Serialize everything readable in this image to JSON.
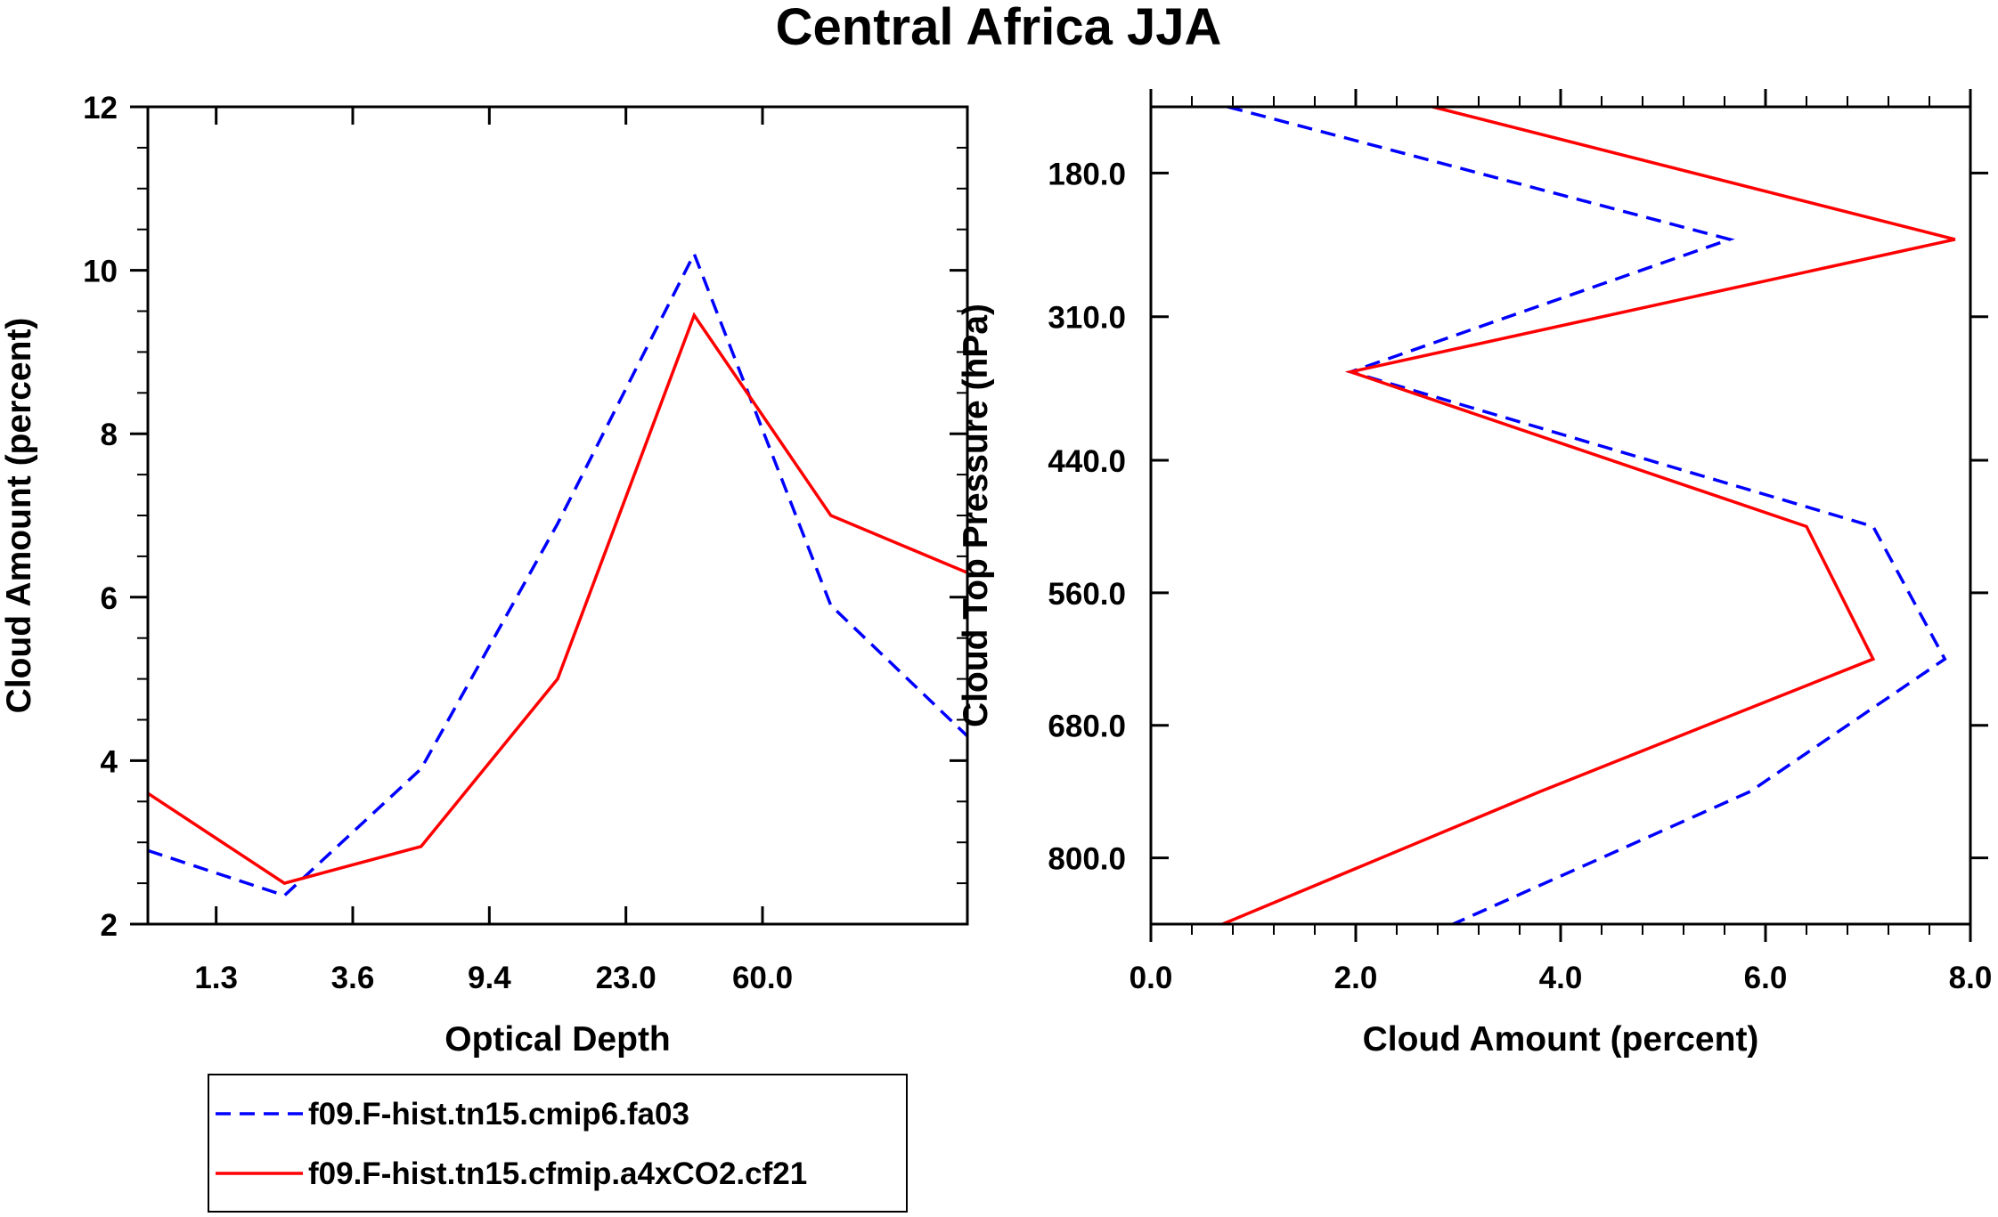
{
  "title": "Central Africa JJA",
  "chart_data": [
    {
      "type": "line",
      "xlabel": "Optical Depth",
      "ylabel": "Cloud Amount (percent)",
      "x_index": [
        0,
        1,
        2,
        3,
        4,
        5
      ],
      "xlim": [
        0.5,
        6.5
      ],
      "ylim": [
        2,
        12
      ],
      "x_tick_labels": [
        {
          "pos": 1,
          "label": "1.3"
        },
        {
          "pos": 2,
          "label": "3.6"
        },
        {
          "pos": 3,
          "label": "9.4"
        },
        {
          "pos": 4,
          "label": "23.0"
        },
        {
          "pos": 5,
          "label": "60.0"
        }
      ],
      "y_ticks": [
        2,
        4,
        6,
        8,
        10,
        12
      ],
      "y_tick_labels": [
        "2",
        "4",
        "6",
        "8",
        "10",
        "12"
      ],
      "series": [
        {
          "name": "f09.F-hist.tn15.cmip6.fa03",
          "color": "#0000ff",
          "dashed": true,
          "x": [
            0.5,
            1.5,
            2.5,
            3.5,
            4.5,
            5.5,
            6.5
          ],
          "values": [
            2.9,
            2.35,
            3.9,
            6.9,
            10.2,
            5.9,
            4.3
          ]
        },
        {
          "name": "f09.F-hist.tn15.cfmip.a4xCO2.cf21",
          "color": "#ff0000",
          "dashed": false,
          "x": [
            0.5,
            1.5,
            2.5,
            3.5,
            4.5,
            5.5,
            6.5
          ],
          "values": [
            3.6,
            2.5,
            2.95,
            5.0,
            9.45,
            7.0,
            6.3
          ]
        }
      ]
    },
    {
      "type": "line",
      "orientation": "vertical-profile",
      "xlabel": "Cloud Amount (percent)",
      "ylabel": "Cloud Top Pressure (hPa)",
      "xlim": [
        0,
        8
      ],
      "ylim": [
        120,
        860
      ],
      "y_inverted": true,
      "x_ticks": [
        0,
        2,
        4,
        6,
        8
      ],
      "x_tick_labels": [
        "0.0",
        "2.0",
        "4.0",
        "6.0",
        "8.0"
      ],
      "y_ticks": [
        180,
        310,
        440,
        560,
        680,
        800
      ],
      "y_tick_labels": [
        "180.0",
        "310.0",
        "440.0",
        "560.0",
        "680.0",
        "800.0"
      ],
      "series": [
        {
          "name": "f09.F-hist.tn15.cmip6.fa03",
          "color": "#0000ff",
          "dashed": true,
          "pressure": [
            120,
            240,
            360,
            500,
            620,
            740,
            860
          ],
          "values": [
            0.75,
            5.65,
            1.95,
            7.05,
            7.75,
            5.85,
            2.95
          ]
        },
        {
          "name": "f09.F-hist.tn15.cfmip.a4xCO2.cf21",
          "color": "#ff0000",
          "dashed": false,
          "pressure": [
            120,
            240,
            360,
            500,
            620,
            740,
            860
          ],
          "values": [
            2.75,
            7.85,
            1.95,
            6.4,
            7.05,
            3.8,
            0.7
          ]
        }
      ]
    }
  ],
  "legend": [
    {
      "label": "f09.F-hist.tn15.cmip6.fa03",
      "color": "#0000ff",
      "dashed": true
    },
    {
      "label": "f09.F-hist.tn15.cfmip.a4xCO2.cf21",
      "color": "#ff0000",
      "dashed": false
    }
  ]
}
